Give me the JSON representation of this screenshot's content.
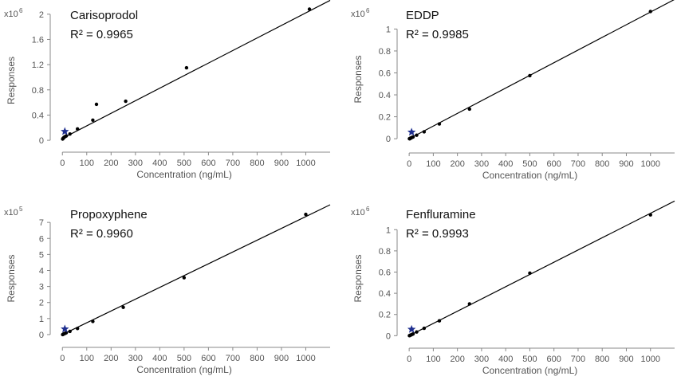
{
  "figure": {
    "ylabel": "Responses",
    "xlabel": "Concentration (ng/mL)"
  },
  "chart_data": [
    {
      "type": "scatter",
      "title": "Carisoprodol",
      "r2_text": "R² = 0.9965",
      "ylabel": "Responses",
      "xlabel": "Concentration (ng/mL)",
      "multiplier": "x10",
      "multiplier_exp": "6",
      "xlim": [
        -50,
        1100
      ],
      "ylim": [
        -0.1,
        2.2
      ],
      "xticks": [
        0,
        100,
        200,
        300,
        400,
        500,
        600,
        700,
        800,
        900,
        1000
      ],
      "yticks": [
        0,
        0.4,
        0.8,
        1.2,
        1.6,
        2
      ],
      "ytick_labels": [
        "0",
        "0.4",
        "0.8",
        "1.2",
        "1.6",
        "2"
      ],
      "fit_line": {
        "x": [
          0,
          1100
        ],
        "y": [
          0.03,
          2.22
        ]
      },
      "x": [
        1,
        3,
        5,
        8,
        12,
        16,
        31,
        62,
        125,
        140,
        260,
        510,
        1015
      ],
      "y": [
        0.02,
        0.03,
        0.04,
        0.05,
        0.06,
        0.07,
        0.1,
        0.18,
        0.32,
        0.57,
        0.62,
        1.15,
        2.08
      ],
      "marker": {
        "x": 10,
        "y": 0.14,
        "color": "#1f2f8f"
      },
      "grid": false
    },
    {
      "type": "scatter",
      "title": "EDDP",
      "r2_text": "R² = 0.9985",
      "ylabel": "Responses",
      "xlabel": "Concentration (ng/mL)",
      "multiplier": "x10",
      "multiplier_exp": "6",
      "xlim": [
        -50,
        1100
      ],
      "ylim": [
        -0.05,
        1.25
      ],
      "xticks": [
        0,
        100,
        200,
        300,
        400,
        500,
        600,
        700,
        800,
        900,
        1000
      ],
      "yticks": [
        0,
        0.2,
        0.4,
        0.6,
        0.8,
        1
      ],
      "ytick_labels": [
        "0",
        "0.2",
        "0.4",
        "0.6",
        "0.8",
        "1"
      ],
      "fit_line": {
        "x": [
          0,
          1100
        ],
        "y": [
          0.0,
          1.27
        ]
      },
      "x": [
        1,
        3,
        5,
        8,
        12,
        16,
        31,
        62,
        125,
        250,
        500,
        1000
      ],
      "y": [
        0.0,
        0.0,
        0.005,
        0.008,
        0.012,
        0.016,
        0.032,
        0.063,
        0.135,
        0.27,
        0.575,
        1.16
      ],
      "marker": {
        "x": 10,
        "y": 0.06,
        "color": "#1f2f8f"
      },
      "grid": false
    },
    {
      "type": "scatter",
      "title": "Propoxyphene",
      "r2_text": "R² = 0.9960",
      "ylabel": "Responses",
      "xlabel": "Concentration (ng/mL)",
      "multiplier": "x10",
      "multiplier_exp": "5",
      "xlim": [
        -50,
        1100
      ],
      "ylim": [
        -0.4,
        8.2
      ],
      "xticks": [
        0,
        100,
        200,
        300,
        400,
        500,
        600,
        700,
        800,
        900,
        1000
      ],
      "yticks": [
        0,
        1,
        2,
        3,
        4,
        5,
        6,
        7
      ],
      "ytick_labels": [
        "0",
        "1",
        "2",
        "3",
        "4",
        "5",
        "6",
        "7"
      ],
      "fit_line": {
        "x": [
          0,
          1100
        ],
        "y": [
          0.0,
          8.1
        ]
      },
      "x": [
        1,
        3,
        5,
        8,
        12,
        16,
        31,
        62,
        125,
        250,
        500,
        1000
      ],
      "y": [
        0.0,
        0.02,
        0.04,
        0.06,
        0.08,
        0.12,
        0.2,
        0.38,
        0.82,
        1.7,
        3.55,
        7.5
      ],
      "marker": {
        "x": 10,
        "y": 0.35,
        "color": "#1f2f8f"
      },
      "grid": false
    },
    {
      "type": "scatter",
      "title": "Fenfluramine",
      "r2_text": "R² = 0.9993",
      "ylabel": "Responses",
      "xlabel": "Concentration (ng/mL)",
      "multiplier": "x10",
      "multiplier_exp": "6",
      "xlim": [
        -50,
        1100
      ],
      "ylim": [
        -0.05,
        1.25
      ],
      "xticks": [
        0,
        100,
        200,
        300,
        400,
        500,
        600,
        700,
        800,
        900,
        1000
      ],
      "yticks": [
        0,
        0.2,
        0.4,
        0.6,
        0.8,
        1
      ],
      "ytick_labels": [
        "0",
        "0.2",
        "0.4",
        "0.6",
        "0.8",
        "1"
      ],
      "fit_line": {
        "x": [
          0,
          1100
        ],
        "y": [
          0.0,
          1.27
        ]
      },
      "x": [
        1,
        3,
        5,
        8,
        12,
        16,
        31,
        62,
        125,
        250,
        500,
        1000
      ],
      "y": [
        0.0,
        0.002,
        0.005,
        0.008,
        0.012,
        0.016,
        0.035,
        0.07,
        0.14,
        0.3,
        0.59,
        1.14
      ],
      "marker": {
        "x": 10,
        "y": 0.06,
        "color": "#1f2f8f"
      },
      "grid": false
    }
  ]
}
